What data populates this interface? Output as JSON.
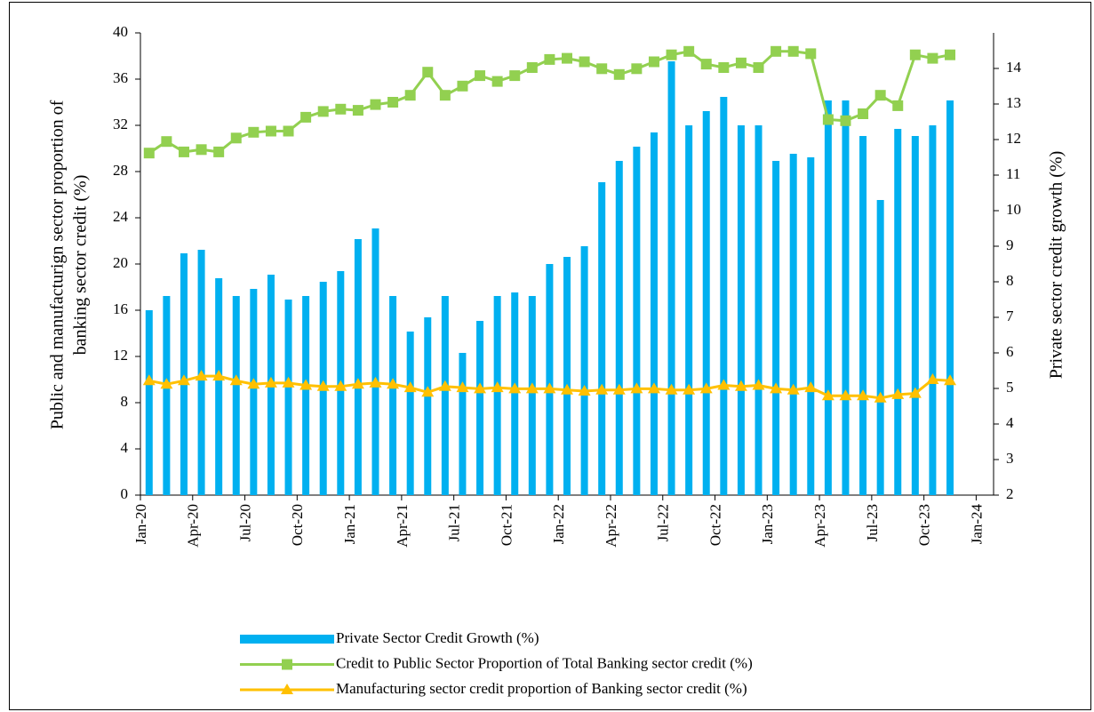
{
  "chart_data": {
    "type": "bar-line",
    "ylabel": [
      "Public and manufacturign sector proportion of",
      "banking sector credit (%)"
    ],
    "y2label": "Private sector credit growth (%)",
    "x": [
      "2020-01",
      "2020-02",
      "2020-03",
      "2020-04",
      "2020-05",
      "2020-06",
      "2020-07",
      "2020-08",
      "2020-09",
      "2020-10",
      "2020-11",
      "2020-12",
      "2021-01",
      "2021-02",
      "2021-03",
      "2021-04",
      "2021-05",
      "2021-06",
      "2021-07",
      "2021-08",
      "2021-09",
      "2021-10",
      "2021-11",
      "2021-12",
      "2022-01",
      "2022-02",
      "2022-03",
      "2022-04",
      "2022-05",
      "2022-06",
      "2022-07",
      "2022-08",
      "2022-09",
      "2022-10",
      "2022-11",
      "2022-12",
      "2023-01",
      "2023-02",
      "2023-03",
      "2023-04",
      "2023-05",
      "2023-06",
      "2023-07",
      "2023-08",
      "2023-09",
      "2023-10",
      "2023-11"
    ],
    "xlim": [
      "2020-01",
      "2024-02"
    ],
    "xticks": [
      {
        "value": "2020-01",
        "label": "Jan-20"
      },
      {
        "value": "2020-04",
        "label": "Apr-20"
      },
      {
        "value": "2020-07",
        "label": "Jul-20"
      },
      {
        "value": "2020-10",
        "label": "Oct-20"
      },
      {
        "value": "2021-01",
        "label": "Jan-21"
      },
      {
        "value": "2021-04",
        "label": "Apr-21"
      },
      {
        "value": "2021-07",
        "label": "Jul-21"
      },
      {
        "value": "2021-10",
        "label": "Oct-21"
      },
      {
        "value": "2022-01",
        "label": "Jan-22"
      },
      {
        "value": "2022-04",
        "label": "Apr-22"
      },
      {
        "value": "2022-07",
        "label": "Jul-22"
      },
      {
        "value": "2022-10",
        "label": "Oct-22"
      },
      {
        "value": "2023-01",
        "label": "Jan-23"
      },
      {
        "value": "2023-04",
        "label": "Apr-23"
      },
      {
        "value": "2023-07",
        "label": "Jul-23"
      },
      {
        "value": "2023-10",
        "label": "Oct-23"
      },
      {
        "value": "2024-01",
        "label": "Jan-24"
      }
    ],
    "ylim": [
      0,
      40
    ],
    "yticks": [
      0,
      4,
      8,
      12,
      16,
      20,
      24,
      28,
      32,
      36,
      40
    ],
    "y2lim": [
      2,
      15
    ],
    "y2ticks": [
      2,
      3,
      4,
      5,
      6,
      7,
      8,
      9,
      10,
      11,
      12,
      13,
      14
    ],
    "series": [
      {
        "name": "Private Sector Credit Growth (%)",
        "kind": "bar",
        "axis": "y2",
        "color": "#00b0f0",
        "values": [
          7.2,
          7.6,
          8.8,
          8.9,
          8.1,
          7.6,
          7.8,
          8.2,
          7.5,
          7.6,
          8.0,
          8.3,
          9.2,
          9.5,
          7.6,
          6.6,
          7.0,
          7.6,
          6.0,
          6.9,
          7.6,
          7.7,
          7.6,
          8.5,
          8.7,
          9.0,
          10.8,
          11.4,
          11.8,
          12.2,
          14.2,
          12.4,
          12.8,
          13.2,
          12.4,
          12.4,
          11.4,
          11.6,
          11.5,
          13.1,
          13.1,
          12.1,
          10.3,
          12.3,
          12.1,
          12.4,
          13.1
        ]
      },
      {
        "name": "Credit to Public Sector Proportion of Total Banking sector credit (%)",
        "kind": "line",
        "marker": "square",
        "color": "#92d050",
        "values": [
          29.6,
          30.6,
          29.7,
          29.9,
          29.7,
          30.9,
          31.4,
          31.5,
          31.5,
          32.7,
          33.2,
          33.4,
          33.3,
          33.8,
          34.0,
          34.6,
          36.6,
          34.6,
          35.4,
          36.3,
          35.8,
          36.3,
          37.0,
          37.7,
          37.8,
          37.5,
          36.9,
          36.4,
          36.9,
          37.5,
          38.1,
          38.4,
          37.3,
          37.0,
          37.4,
          37.0,
          38.4,
          38.4,
          38.2,
          32.5,
          32.4,
          33.0,
          34.6,
          33.7,
          38.1,
          37.8,
          38.1
        ]
      },
      {
        "name": "Manufacturing sector credit proportion of Banking sector credit (%)",
        "kind": "line",
        "marker": "triangle",
        "color": "#ffc000",
        "values": [
          9.9,
          9.6,
          9.9,
          10.3,
          10.3,
          9.9,
          9.6,
          9.7,
          9.7,
          9.5,
          9.4,
          9.4,
          9.6,
          9.7,
          9.6,
          9.3,
          8.9,
          9.4,
          9.3,
          9.2,
          9.3,
          9.2,
          9.2,
          9.2,
          9.1,
          9.0,
          9.1,
          9.1,
          9.2,
          9.2,
          9.1,
          9.1,
          9.2,
          9.5,
          9.4,
          9.5,
          9.2,
          9.1,
          9.3,
          8.6,
          8.6,
          8.6,
          8.4,
          8.7,
          8.8,
          10.0,
          9.9
        ]
      }
    ]
  }
}
